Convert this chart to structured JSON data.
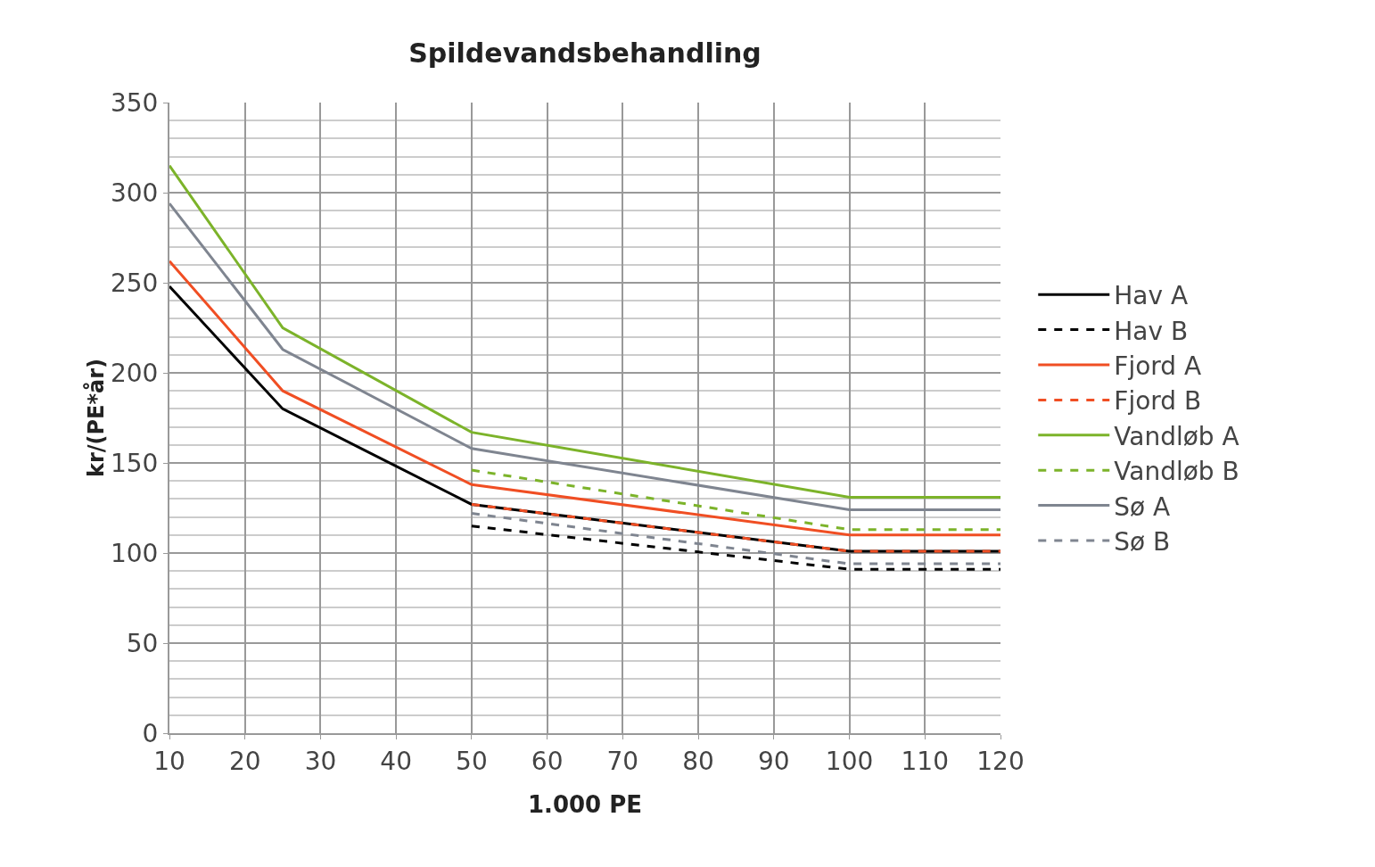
{
  "chart_data": {
    "type": "line",
    "title": "Spildevandsbehandling",
    "xlabel": "1.000 PE",
    "ylabel": "kr/(PE*år)",
    "xlim": [
      10,
      120
    ],
    "xticks": [
      10,
      20,
      30,
      40,
      50,
      60,
      70,
      80,
      90,
      100,
      110,
      120
    ],
    "ylim": [
      0,
      350
    ],
    "yticks": [
      0,
      50,
      100,
      150,
      200,
      250,
      300,
      350
    ],
    "grid": true,
    "legend": "right",
    "marker": "none",
    "series": [
      {
        "name": "Hav A",
        "color": "#000000",
        "line_style": "solid",
        "x": [
          10,
          25,
          50,
          100,
          120
        ],
        "values": [
          248,
          180,
          127,
          101,
          101
        ]
      },
      {
        "name": "Hav B",
        "color": "#000000",
        "line_style": "dashed",
        "x": [
          50,
          100,
          120
        ],
        "values": [
          115,
          91,
          91
        ]
      },
      {
        "name": "Fjord A",
        "color": "#f04e23",
        "line_style": "solid",
        "x": [
          10,
          25,
          50,
          100,
          120
        ],
        "values": [
          262,
          190,
          138,
          110,
          110
        ]
      },
      {
        "name": "Fjord B",
        "color": "#f04e23",
        "line_style": "dashed",
        "x": [
          50,
          100,
          120
        ],
        "values": [
          127,
          101,
          101
        ]
      },
      {
        "name": "Vandløb A",
        "color": "#7cb32a",
        "line_style": "solid",
        "x": [
          10,
          25,
          50,
          100,
          120
        ],
        "values": [
          315,
          225,
          167,
          131,
          131
        ]
      },
      {
        "name": "Vandløb B",
        "color": "#7cb32a",
        "line_style": "dashed",
        "x": [
          50,
          100,
          120
        ],
        "values": [
          146,
          113,
          113
        ]
      },
      {
        "name": "Sø A",
        "color": "#7f8590",
        "line_style": "solid",
        "x": [
          10,
          25,
          50,
          100,
          120
        ],
        "values": [
          294,
          213,
          158,
          124,
          124
        ]
      },
      {
        "name": "Sø B",
        "color": "#7f8590",
        "line_style": "dashed",
        "x": [
          50,
          100,
          120
        ],
        "values": [
          122,
          94,
          94
        ]
      }
    ]
  }
}
